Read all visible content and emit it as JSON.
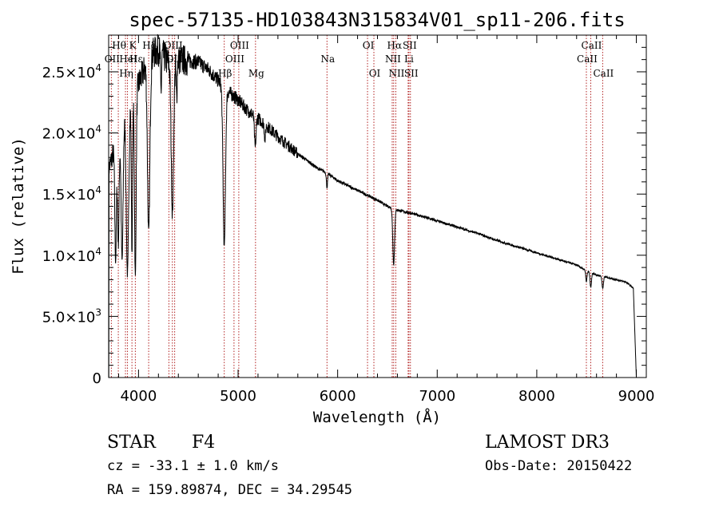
{
  "chart_data": {
    "type": "line",
    "title": "spec-57135-HD103843N315834V01_sp11-206.fits",
    "xlabel": "Wavelength (Å)",
    "ylabel": "Flux (relative)",
    "xlim": [
      3700,
      9100
    ],
    "ylim": [
      0,
      28000
    ],
    "xticks": [
      {
        "value": 4000,
        "label": "4000"
      },
      {
        "value": 5000,
        "label": "5000"
      },
      {
        "value": 6000,
        "label": "6000"
      },
      {
        "value": 7000,
        "label": "7000"
      },
      {
        "value": 8000,
        "label": "8000"
      },
      {
        "value": 9000,
        "label": "9000"
      }
    ],
    "yticks": [
      {
        "value": 0,
        "mant": "0",
        "exp": ""
      },
      {
        "value": 5000,
        "mant": "5.0×10",
        "exp": "3"
      },
      {
        "value": 10000,
        "mant": "1.0×10",
        "exp": "4"
      },
      {
        "value": 15000,
        "mant": "1.5×10",
        "exp": "4"
      },
      {
        "value": 20000,
        "mant": "2.0×10",
        "exp": "4"
      },
      {
        "value": 25000,
        "mant": "2.5×10",
        "exp": "4"
      }
    ],
    "continuum": [
      [
        3700,
        17000
      ],
      [
        3750,
        18500
      ],
      [
        3800,
        20000
      ],
      [
        3850,
        21500
      ],
      [
        3900,
        22500
      ],
      [
        3950,
        23000
      ],
      [
        4000,
        24000
      ],
      [
        4050,
        25000
      ],
      [
        4100,
        26000
      ],
      [
        4150,
        26500
      ],
      [
        4200,
        26800
      ],
      [
        4250,
        26300
      ],
      [
        4300,
        25800
      ],
      [
        4400,
        26000
      ],
      [
        4500,
        25900
      ],
      [
        4600,
        25800
      ],
      [
        4700,
        25200
      ],
      [
        4800,
        24300
      ],
      [
        4900,
        23400
      ],
      [
        5000,
        22700
      ],
      [
        5100,
        21800
      ],
      [
        5200,
        21200
      ],
      [
        5300,
        20500
      ],
      [
        5400,
        19700
      ],
      [
        5500,
        19000
      ],
      [
        5600,
        18300
      ],
      [
        5700,
        17700
      ],
      [
        5800,
        17100
      ],
      [
        5900,
        16700
      ],
      [
        6000,
        16100
      ],
      [
        6200,
        15300
      ],
      [
        6400,
        14500
      ],
      [
        6500,
        14000
      ],
      [
        6600,
        13700
      ],
      [
        6700,
        13500
      ],
      [
        6800,
        13300
      ],
      [
        7000,
        12800
      ],
      [
        7200,
        12300
      ],
      [
        7400,
        11800
      ],
      [
        7600,
        11200
      ],
      [
        7800,
        10700
      ],
      [
        8000,
        10200
      ],
      [
        8200,
        9700
      ],
      [
        8400,
        9200
      ],
      [
        8500,
        8700
      ],
      [
        8600,
        8400
      ],
      [
        8700,
        8200
      ],
      [
        8800,
        8000
      ],
      [
        8900,
        7800
      ],
      [
        8970,
        7300
      ],
      [
        9000,
        0
      ]
    ],
    "absorption": [
      [
        3770,
        0.5,
        8
      ],
      [
        3797,
        0.45,
        8
      ],
      [
        3835,
        0.55,
        10
      ],
      [
        3889,
        0.62,
        12
      ],
      [
        3934,
        0.55,
        6
      ],
      [
        3968,
        0.65,
        8
      ],
      [
        4102,
        0.55,
        12
      ],
      [
        4226,
        0.12,
        5
      ],
      [
        4340,
        0.48,
        12
      ],
      [
        4383,
        0.12,
        5
      ],
      [
        4861,
        0.55,
        12
      ],
      [
        5172,
        0.12,
        8
      ],
      [
        5270,
        0.06,
        6
      ],
      [
        5893,
        0.07,
        6
      ],
      [
        6563,
        0.33,
        9
      ],
      [
        8498,
        0.1,
        6
      ],
      [
        8542,
        0.14,
        7
      ],
      [
        8662,
        0.12,
        7
      ]
    ],
    "lines": [
      {
        "x": 3727,
        "label": "OII",
        "row": 1
      },
      {
        "x": 3797,
        "label": "Hθ",
        "row": 0
      },
      {
        "x": 3869,
        "label": "Hη",
        "row": 2
      },
      {
        "x": 3889,
        "label": "HeI",
        "row": 1
      },
      {
        "x": 3934,
        "label": "K",
        "row": 0
      },
      {
        "x": 3968,
        "label": "Hε",
        "row": 1
      },
      {
        "x": 4102,
        "label": "Hδ",
        "row": 0
      },
      {
        "x": 4305,
        "label": "G",
        "row": 1
      },
      {
        "x": 4340,
        "label": "OIII",
        "row": 0
      },
      {
        "x": 4363,
        "label": "OIII",
        "row": 1
      },
      {
        "x": 4861,
        "label": "Hβ",
        "row": 2
      },
      {
        "x": 4959,
        "label": "OIII",
        "row": 1
      },
      {
        "x": 5007,
        "label": "OIII",
        "row": 0
      },
      {
        "x": 5175,
        "label": "Mg",
        "row": 2
      },
      {
        "x": 5893,
        "label": "Na",
        "row": 1
      },
      {
        "x": 6300,
        "label": "OI",
        "row": 0
      },
      {
        "x": 6364,
        "label": "OI",
        "row": 2
      },
      {
        "x": 6548,
        "label": "NII",
        "row": 1
      },
      {
        "x": 6563,
        "label": "Hα",
        "row": 0
      },
      {
        "x": 6584,
        "label": "NII",
        "row": 2
      },
      {
        "x": 6708,
        "label": "Li",
        "row": 1
      },
      {
        "x": 6716,
        "label": "SII",
        "row": 0
      },
      {
        "x": 6731,
        "label": "SII",
        "row": 2
      },
      {
        "x": 8498,
        "label": "CaII",
        "row": 1
      },
      {
        "x": 8542,
        "label": "CaII",
        "row": 0
      },
      {
        "x": 8662,
        "label": "CaII",
        "row": 2
      }
    ]
  },
  "info": {
    "class_label": "STAR",
    "subclass": "F4",
    "survey": "LAMOST DR3",
    "cz": "cz = -33.1 ± 1.0 km/s",
    "obs_date": "Obs-Date: 20150422",
    "coords": "RA = 159.89874, DEC =  34.29545"
  }
}
